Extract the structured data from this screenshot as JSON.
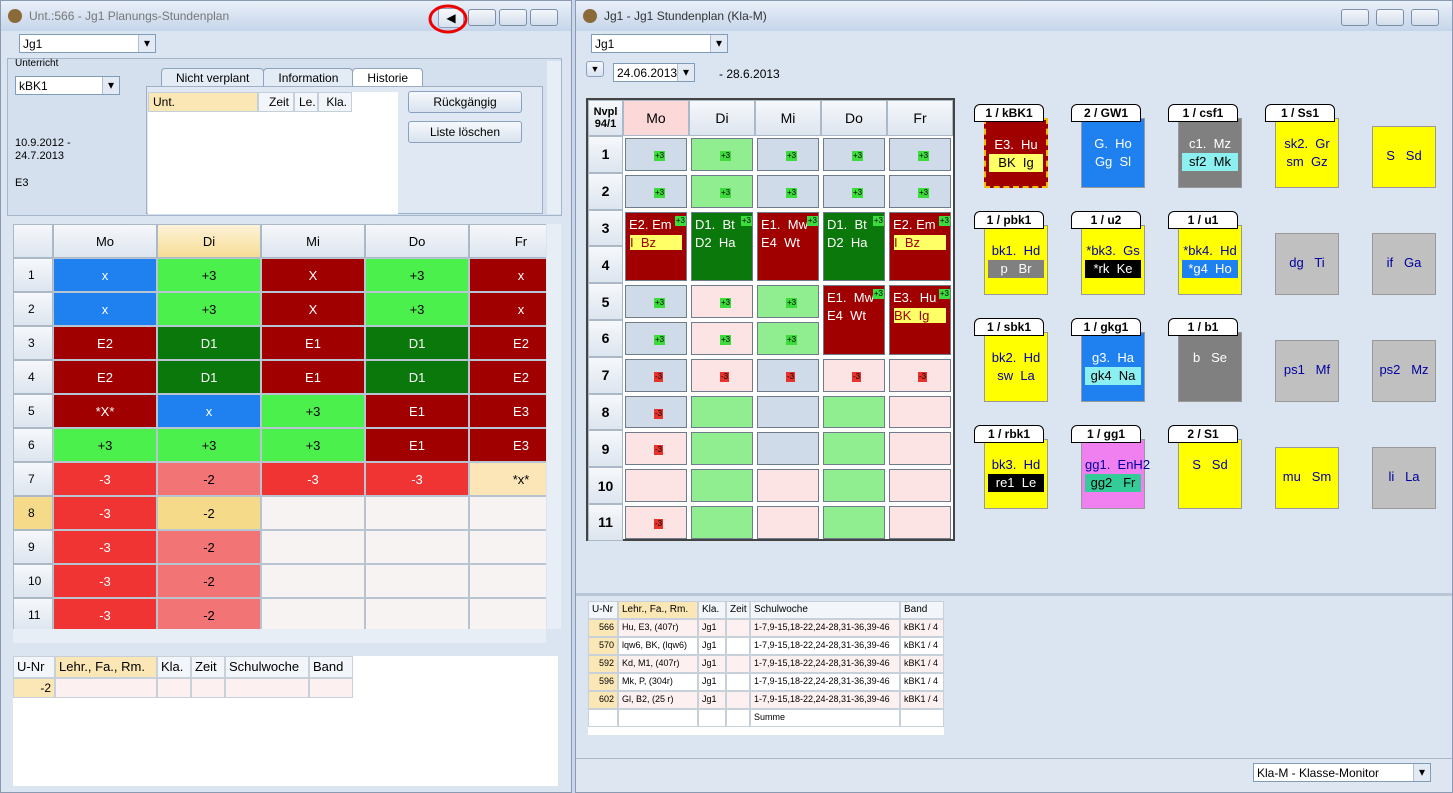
{
  "left_window": {
    "title": "Unt.:566 - Jg1  Planungs-Stundenplan",
    "class_combo": "Jg1",
    "unterricht_label": "Unterricht",
    "unterricht_value": "kBK1",
    "tabs": [
      "Nicht verplant",
      "Information",
      "Historie"
    ],
    "history_columns": [
      "Unt.",
      "Zeit",
      "Le.",
      "Kla."
    ],
    "buttons": [
      "Rückgängig",
      "Liste löschen"
    ],
    "date_range": [
      "10.9.2012 -",
      "24.7.2013"
    ],
    "class_name": "E3",
    "timetable": {
      "days": [
        "Mo",
        "Di",
        "Mi",
        "Do",
        "Fr"
      ],
      "rows": [
        {
          "period": "1",
          "cells": [
            {
              "text": "x",
              "color": "#1f80f0"
            },
            {
              "text": "+3",
              "color": "#4cf04c"
            },
            {
              "text": "X",
              "color": "#a00000"
            },
            {
              "text": "+3",
              "color": "#4cf04c"
            },
            {
              "text": "x",
              "color": "#a00000"
            }
          ]
        },
        {
          "period": "2",
          "cells": [
            {
              "text": "x",
              "color": "#1f80f0"
            },
            {
              "text": "+3",
              "color": "#4cf04c"
            },
            {
              "text": "X",
              "color": "#a00000"
            },
            {
              "text": "+3",
              "color": "#4cf04c"
            },
            {
              "text": "x",
              "color": "#a00000"
            }
          ]
        },
        {
          "period": "3",
          "cells": [
            {
              "text": "E2",
              "color": "#a00000"
            },
            {
              "text": "D1",
              "color": "#0a780a"
            },
            {
              "text": "E1",
              "color": "#a00000"
            },
            {
              "text": "D1",
              "color": "#0a780a"
            },
            {
              "text": "E2",
              "color": "#a00000"
            }
          ]
        },
        {
          "period": "4",
          "cells": [
            {
              "text": "E2",
              "color": "#a00000"
            },
            {
              "text": "D1",
              "color": "#0a780a"
            },
            {
              "text": "E1",
              "color": "#a00000"
            },
            {
              "text": "D1",
              "color": "#0a780a"
            },
            {
              "text": "E2",
              "color": "#a00000"
            }
          ]
        },
        {
          "period": "5",
          "cells": [
            {
              "text": "*X*",
              "color": "#a00000"
            },
            {
              "text": "x",
              "color": "#1f80f0"
            },
            {
              "text": "+3",
              "color": "#4cf04c"
            },
            {
              "text": "E1",
              "color": "#a00000"
            },
            {
              "text": "E3",
              "color": "#a00000"
            }
          ]
        },
        {
          "period": "6",
          "cells": [
            {
              "text": "+3",
              "color": "#4cf04c"
            },
            {
              "text": "+3",
              "color": "#4cf04c"
            },
            {
              "text": "+3",
              "color": "#4cf04c"
            },
            {
              "text": "E1",
              "color": "#a00000"
            },
            {
              "text": "E3",
              "color": "#a00000"
            }
          ]
        },
        {
          "period": "7",
          "cells": [
            {
              "text": "-3",
              "color": "#f03434"
            },
            {
              "text": "-2",
              "color": "#f27474"
            },
            {
              "text": "-3",
              "color": "#f03434"
            },
            {
              "text": "-3",
              "color": "#f03434"
            },
            {
              "text": "*x*",
              "color": "#fce6b8"
            }
          ]
        },
        {
          "period": "8",
          "cells": [
            {
              "text": "-3",
              "color": "#f03434"
            },
            {
              "text": "-2",
              "color": "#f5da8a"
            },
            {
              "color": "#f7f3f3"
            },
            {
              "color": "#f7f3f3"
            },
            {
              "color": "#f7f3f3"
            }
          ]
        },
        {
          "period": "9",
          "cells": [
            {
              "text": "-3",
              "color": "#f03434"
            },
            {
              "text": "-2",
              "color": "#f27474"
            },
            {
              "color": "#f7f3f3"
            },
            {
              "color": "#f7f3f3"
            },
            {
              "color": "#f7f3f3"
            }
          ]
        },
        {
          "period": "10",
          "cells": [
            {
              "text": "-3",
              "color": "#f03434"
            },
            {
              "text": "-2",
              "color": "#f27474"
            },
            {
              "color": "#f7f3f3"
            },
            {
              "color": "#f7f3f3"
            },
            {
              "color": "#f7f3f3"
            }
          ]
        },
        {
          "period": "11",
          "cells": [
            {
              "text": "-3",
              "color": "#f03434"
            },
            {
              "text": "-2",
              "color": "#f27474"
            },
            {
              "color": "#f7f3f3"
            },
            {
              "color": "#f7f3f3"
            },
            {
              "color": "#f7f3f3"
            }
          ]
        }
      ]
    },
    "lesson_table": {
      "columns": [
        "U-Nr",
        "Lehr., Fa., Rm.",
        "Kla.",
        "Zeit",
        "Schulwoche",
        "Band"
      ],
      "rows": [
        [
          "-2",
          null,
          null,
          null,
          null,
          null
        ]
      ]
    }
  },
  "right_window": {
    "title": "Jg1 - Jg1  Stundenplan  (Kla-M)",
    "class_combo": "Jg1",
    "date_from": "24.06.2013",
    "date_to": "- 28.6.2013",
    "timetable": {
      "corner": [
        "Nvpl",
        "94/1"
      ],
      "days": [
        "Mo",
        "Di",
        "Mi",
        "Do",
        "Fr"
      ],
      "rows": [
        {
          "period": "1",
          "cells": [
            {
              "tag": "+3",
              "color": "#cfdbe8"
            },
            {
              "tag": "+3",
              "color": "#90ee90"
            },
            {
              "tag": "+3",
              "color": "#cfdbe8"
            },
            {
              "tag": "+3",
              "color": "#cfdbe8"
            },
            {
              "tag": "+3",
              "color": "#cfdbe8"
            }
          ]
        },
        {
          "period": "2",
          "cells": [
            {
              "tag": "+3",
              "color": "#cfdbe8"
            },
            {
              "tag": "+3",
              "color": "#90ee90"
            },
            {
              "tag": "+3",
              "color": "#cfdbe8"
            },
            {
              "tag": "+3",
              "color": "#cfdbe8"
            },
            {
              "tag": "+3",
              "color": "#cfdbe8"
            }
          ]
        },
        {
          "period": "3",
          "cells": [
            {
              "lines": [
                "E2. Em",
                "I  Bz"
              ],
              "tag": "+3",
              "color": "#a00000",
              "band": "#ffff66"
            },
            {
              "lines": [
                "D1.  Bt",
                "D2  Ha"
              ],
              "tag": "+3",
              "color": "#0a780a"
            },
            {
              "lines": [
                "E1.  Mw",
                "E4  Wt"
              ],
              "tag": "+3",
              "color": "#a00000"
            },
            {
              "lines": [
                "D1.  Bt",
                "D2  Ha"
              ],
              "tag": "+3",
              "color": "#0a780a"
            },
            {
              "lines": [
                "E2. Em",
                "I  Bz"
              ],
              "tag": "+3",
              "color": "#a00000",
              "band": "#ffff66"
            }
          ]
        },
        {
          "period": "4",
          "cells": [
            null,
            null,
            null,
            null,
            null
          ]
        },
        {
          "period": "5",
          "cells": [
            {
              "tag": "+3",
              "color": "#cfdbe8"
            },
            {
              "tag": "+3",
              "color": "#fce4e4"
            },
            {
              "tag": "+3",
              "color": "#90ee90"
            },
            {
              "lines": [
                "E1.  Mw",
                "E4  Wt"
              ],
              "tag": "+3",
              "color": "#a00000"
            },
            {
              "lines": [
                "E3.  Hu",
                "BK  Ig"
              ],
              "tag": "+3",
              "color": "#a00000",
              "band": "#ffff66"
            }
          ]
        },
        {
          "period": "6",
          "cells": [
            {
              "tag": "+3",
              "color": "#cfdbe8"
            },
            {
              "tag": "+3",
              "color": "#fce4e4"
            },
            {
              "tag": "+3",
              "color": "#90ee90"
            },
            null,
            null
          ]
        },
        {
          "period": "7",
          "cells": [
            {
              "tag": "-3",
              "color": "#cfdbe8"
            },
            {
              "tag": "-3",
              "color": "#fce4e4"
            },
            {
              "tag": "-3",
              "color": "#cfdbe8"
            },
            {
              "tag": "-3",
              "color": "#fce4e4"
            },
            {
              "tag": "-3",
              "color": "#fce4e4"
            }
          ]
        },
        {
          "period": "8",
          "cells": [
            {
              "tag": "-3",
              "color": "#cfdbe8"
            },
            {
              "color": "#90ee90"
            },
            {
              "color": "#cfdbe8"
            },
            {
              "color": "#90ee90"
            },
            {
              "color": "#fce4e4"
            }
          ]
        },
        {
          "period": "9",
          "cells": [
            {
              "tag": "-3",
              "color": "#fce4e4"
            },
            {
              "color": "#90ee90"
            },
            {
              "color": "#cfdbe8"
            },
            {
              "color": "#90ee90"
            },
            {
              "color": "#fce4e4"
            }
          ]
        },
        {
          "period": "10",
          "cells": [
            {
              "color": "#fce4e4"
            },
            {
              "color": "#90ee90"
            },
            {
              "color": "#fce4e4"
            },
            {
              "color": "#90ee90"
            },
            {
              "color": "#fce4e4"
            }
          ]
        },
        {
          "period": "11",
          "cells": [
            {
              "tag": "-3",
              "color": "#fce4e4"
            },
            {
              "color": "#90ee90"
            },
            {
              "color": "#fce4e4"
            },
            {
              "color": "#90ee90"
            },
            {
              "color": "#fce4e4"
            }
          ]
        }
      ]
    },
    "cards": [
      {
        "title": "1 / kBK1",
        "lines": [
          "E3.  Hu",
          "BK  Ig"
        ],
        "color": "#a00000",
        "band": "#ffff66"
      },
      {
        "title": "2 / GW1",
        "lines": [
          "G.  Ho",
          "Gg  Sl"
        ],
        "color": "#1f80f0"
      },
      {
        "title": "1 / csf1",
        "lines": [
          "c1.  Mz",
          "sf2  Mk"
        ],
        "color": "#808080",
        "band": "#8cf0f0"
      },
      {
        "title": "1 / Ss1",
        "lines": [
          "sk2.  Gr",
          "sm  Gz"
        ],
        "color": "#ffff00"
      },
      {
        "lines": [
          "S   Sd"
        ],
        "color": "#ffff00"
      },
      {
        "title": "1 / pbk1",
        "lines": [
          "bk1.  Hd",
          "p   Br"
        ],
        "color": "#ffff00",
        "band": "#808080"
      },
      {
        "title": "1 / u2",
        "lines": [
          "*bk3.  Gs",
          "*rk  Ke"
        ],
        "color": "#ffff00",
        "band": "#000000"
      },
      {
        "title": "1 / u1",
        "lines": [
          "*bk4.  Hd",
          "*g4  Ho"
        ],
        "color": "#ffff00",
        "band": "#1f80f0"
      },
      {
        "lines": [
          "dg   Ti"
        ],
        "color": "#c0c0c0"
      },
      {
        "lines": [
          "if   Ga"
        ],
        "color": "#c0c0c0"
      },
      {
        "title": "1 / sbk1",
        "lines": [
          "bk2.  Hd",
          "sw  La"
        ],
        "color": "#ffff00"
      },
      {
        "title": "1 / gkg1",
        "lines": [
          "g3.  Ha",
          "gk4  Na"
        ],
        "color": "#1f80f0",
        "band": "#8cf0f0"
      },
      {
        "title": "1 / b1",
        "lines": [
          "b   Se"
        ],
        "color": "#808080"
      },
      {
        "lines": [
          "ps1   Mf"
        ],
        "color": "#c0c0c0"
      },
      {
        "lines": [
          "ps2   Mz"
        ],
        "color": "#c0c0c0"
      },
      {
        "title": "1 / rbk1",
        "lines": [
          "bk3.  Hd",
          "re1  Le"
        ],
        "color": "#ffff00",
        "band": "#000000"
      },
      {
        "title": "1 / gg1",
        "lines": [
          "gg1.  EnH2",
          "gg2   Fr"
        ],
        "color": "#f080f0",
        "band": "#33cc99"
      },
      {
        "title": "2 / S1",
        "lines": [
          "S   Sd"
        ],
        "color": "#ffff00"
      },
      {
        "lines": [
          "mu   Sm"
        ],
        "color": "#ffff00"
      },
      {
        "lines": [
          "li   La"
        ],
        "color": "#c0c0c0"
      }
    ],
    "lesson_table": {
      "columns": [
        "U-Nr",
        "Lehr., Fa., Rm.",
        "Kla.",
        "Zeit",
        "Schulwoche",
        "Band"
      ],
      "rows": [
        [
          "566",
          "Hu, E3, (407r)",
          "Jg1",
          null,
          "1-7,9-15,18-22,24-28,31-36,39-46",
          "kBK1 / 4"
        ],
        [
          "570",
          "lqw6, BK, (lqw6)",
          "Jg1",
          null,
          "1-7,9-15,18-22,24-28,31-36,39-46",
          "kBK1 / 4"
        ],
        [
          "592",
          "Kd, M1, (407r)",
          "Jg1",
          null,
          "1-7,9-15,18-22,24-28,31-36,39-46",
          "kBK1 / 4"
        ],
        [
          "596",
          "Mk, P, (304r)",
          "Jg1",
          null,
          "1-7,9-15,18-22,24-28,31-36,39-46",
          "kBK1 / 4"
        ],
        [
          "602",
          "Gl, B2, (25 r)",
          "Jg1",
          null,
          "1-7,9-15,18-22,24-28,31-36,39-46",
          "kBK1 / 4"
        ],
        [
          null,
          null,
          null,
          null,
          "Summe",
          null
        ]
      ]
    },
    "status": "Kla-M - Klasse-Monitor"
  }
}
